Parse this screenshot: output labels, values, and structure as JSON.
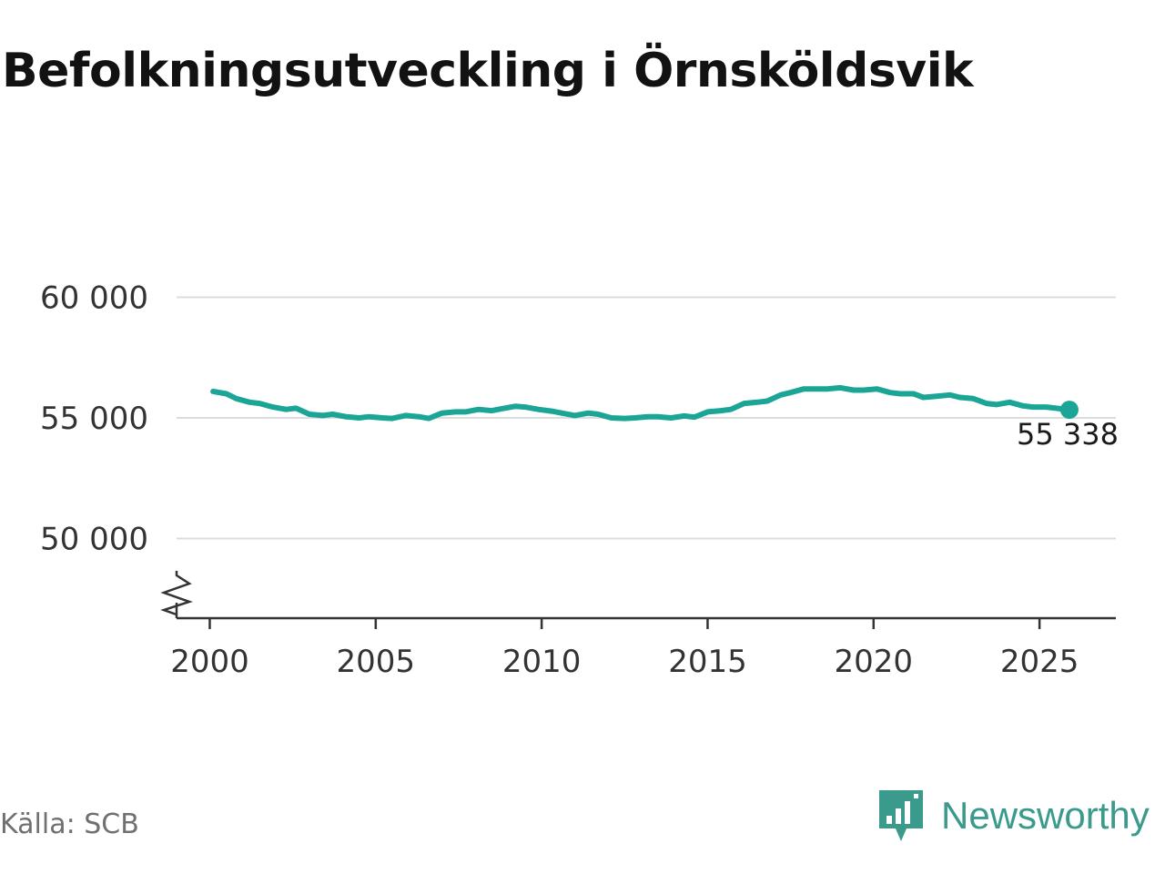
{
  "title": "Befolkningsutveckling i Örnsköldsvik",
  "source": "Källa: SCB",
  "brand": {
    "name": "Newsworthy",
    "icon": "newsworthy-logo-icon",
    "color": "#3a9a8c"
  },
  "chart_data": {
    "type": "line",
    "title": "Befolkningsutveckling i Örnsköldsvik",
    "xlabel": "",
    "ylabel": "",
    "xlim": [
      1999,
      2027.3
    ],
    "ylim": [
      46700,
      61000
    ],
    "y_axis_break": true,
    "grid": true,
    "x_ticks": [
      2000,
      2005,
      2010,
      2015,
      2020,
      2025
    ],
    "x_tick_labels": [
      "2000",
      "2005",
      "2010",
      "2015",
      "2020",
      "2025"
    ],
    "y_ticks": [
      50000,
      55000,
      60000
    ],
    "y_tick_labels": [
      "50 000",
      "55 000",
      "60 000"
    ],
    "line_color": "#1aa596",
    "series": [
      {
        "x": [
          2000.1,
          2000.5,
          2000.8,
          2001.2,
          2001.5,
          2001.9,
          2002.3,
          2002.6,
          2003.0,
          2003.4,
          2003.7,
          2004.1,
          2004.5,
          2004.8,
          2005.2,
          2005.5,
          2005.9,
          2006.3,
          2006.6,
          2007.0,
          2007.4,
          2007.7,
          2008.1,
          2008.5,
          2008.8,
          2009.2,
          2009.5,
          2009.9,
          2010.3,
          2010.6,
          2011.0,
          2011.4,
          2011.7,
          2012.1,
          2012.5,
          2012.8,
          2013.2,
          2013.5,
          2013.9,
          2014.3,
          2014.6,
          2015.0,
          2015.4,
          2015.7,
          2016.1,
          2016.5,
          2016.8,
          2017.2,
          2017.5,
          2017.9,
          2018.3,
          2018.6,
          2019.0,
          2019.4,
          2019.7,
          2020.1,
          2020.5,
          2020.8,
          2021.2,
          2021.5,
          2021.9,
          2022.3,
          2022.6,
          2023.0,
          2023.4,
          2023.7,
          2024.1,
          2024.5,
          2024.8,
          2025.2,
          2025.5,
          2025.9
        ],
        "y": [
          56100,
          56000,
          55800,
          55650,
          55600,
          55450,
          55350,
          55400,
          55150,
          55100,
          55150,
          55050,
          55000,
          55050,
          55000,
          54980,
          55100,
          55050,
          54980,
          55200,
          55250,
          55250,
          55350,
          55300,
          55380,
          55480,
          55450,
          55350,
          55280,
          55200,
          55100,
          55200,
          55150,
          55000,
          54980,
          55000,
          55050,
          55050,
          55000,
          55080,
          55030,
          55250,
          55300,
          55350,
          55600,
          55650,
          55700,
          55950,
          56050,
          56200,
          56200,
          56200,
          56250,
          56150,
          56150,
          56200,
          56050,
          56000,
          56000,
          55850,
          55900,
          55950,
          55850,
          55800,
          55600,
          55550,
          55650,
          55500,
          55450,
          55450,
          55400,
          55338
        ]
      }
    ],
    "last_point_label": "55 338"
  }
}
